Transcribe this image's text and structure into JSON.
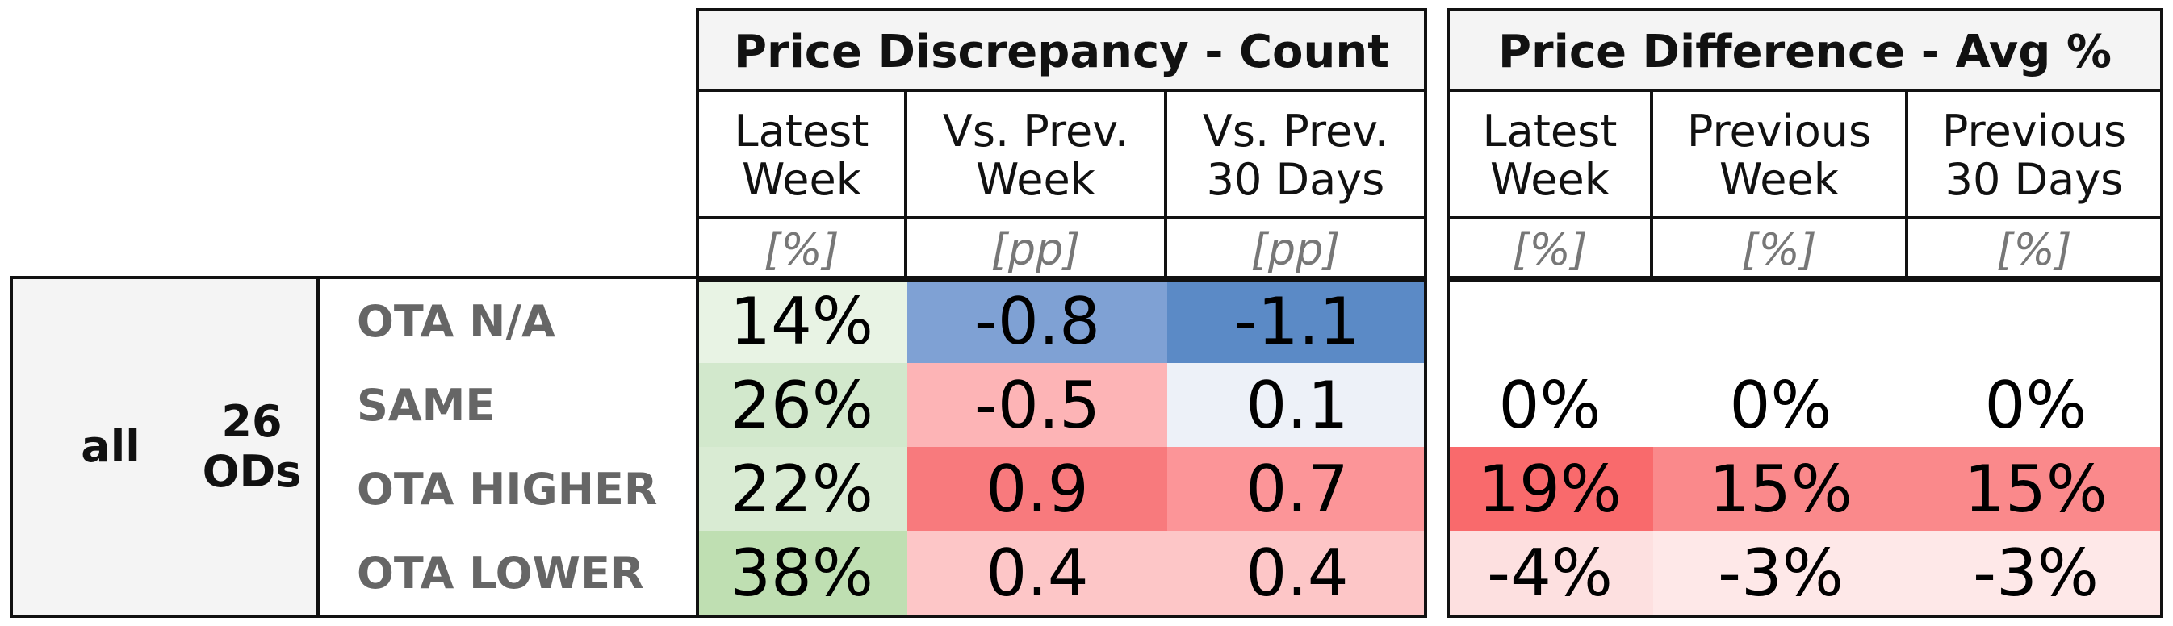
{
  "chart_data": {
    "type": "table",
    "row_group": {
      "segment": "all",
      "ods_count": "26",
      "ods_label": "ODs"
    },
    "rows": [
      "OTA N/A",
      "SAME",
      "OTA HIGHER",
      "OTA LOWER"
    ],
    "column_groups": [
      {
        "title": "Price Discrepancy - Count",
        "columns": [
          {
            "label": "Latest\nWeek",
            "unit": "[%]"
          },
          {
            "label": "Vs. Prev.\nWeek",
            "unit": "[pp]"
          },
          {
            "label": "Vs. Prev.\n30 Days",
            "unit": "[pp]"
          }
        ]
      },
      {
        "title": "Price Difference - Avg %",
        "columns": [
          {
            "label": "Latest\nWeek",
            "unit": "[%]"
          },
          {
            "label": "Previous\nWeek",
            "unit": "[%]"
          },
          {
            "label": "Previous\n30 Days",
            "unit": "[%]"
          }
        ]
      }
    ],
    "values": [
      [
        "14%",
        "-0.8",
        "-1.1",
        "",
        "",
        ""
      ],
      [
        "26%",
        "-0.5",
        "0.1",
        "0%",
        "0%",
        "0%"
      ],
      [
        "22%",
        "0.9",
        "0.7",
        "19%",
        "15%",
        "15%"
      ],
      [
        "38%",
        "0.4",
        "0.4",
        "-4%",
        "-3%",
        "-3%"
      ]
    ],
    "cell_colors": [
      [
        "#e8f3e4",
        "#7fa1d4",
        "#5b8ac6",
        "#ffffff",
        "#ffffff",
        "#ffffff"
      ],
      [
        "#d2e8cc",
        "#fdb4b6",
        "#edf1f8",
        "#ffffff",
        "#ffffff",
        "#ffffff"
      ],
      [
        "#d9ebd3",
        "#f87a7d",
        "#fc9598",
        "#f96a6c",
        "#fa898b",
        "#fa898b"
      ],
      [
        "#bfdfb2",
        "#fdc6c7",
        "#fdc6c7",
        "#fde0e0",
        "#fee8e8",
        "#fee8e8"
      ]
    ]
  }
}
